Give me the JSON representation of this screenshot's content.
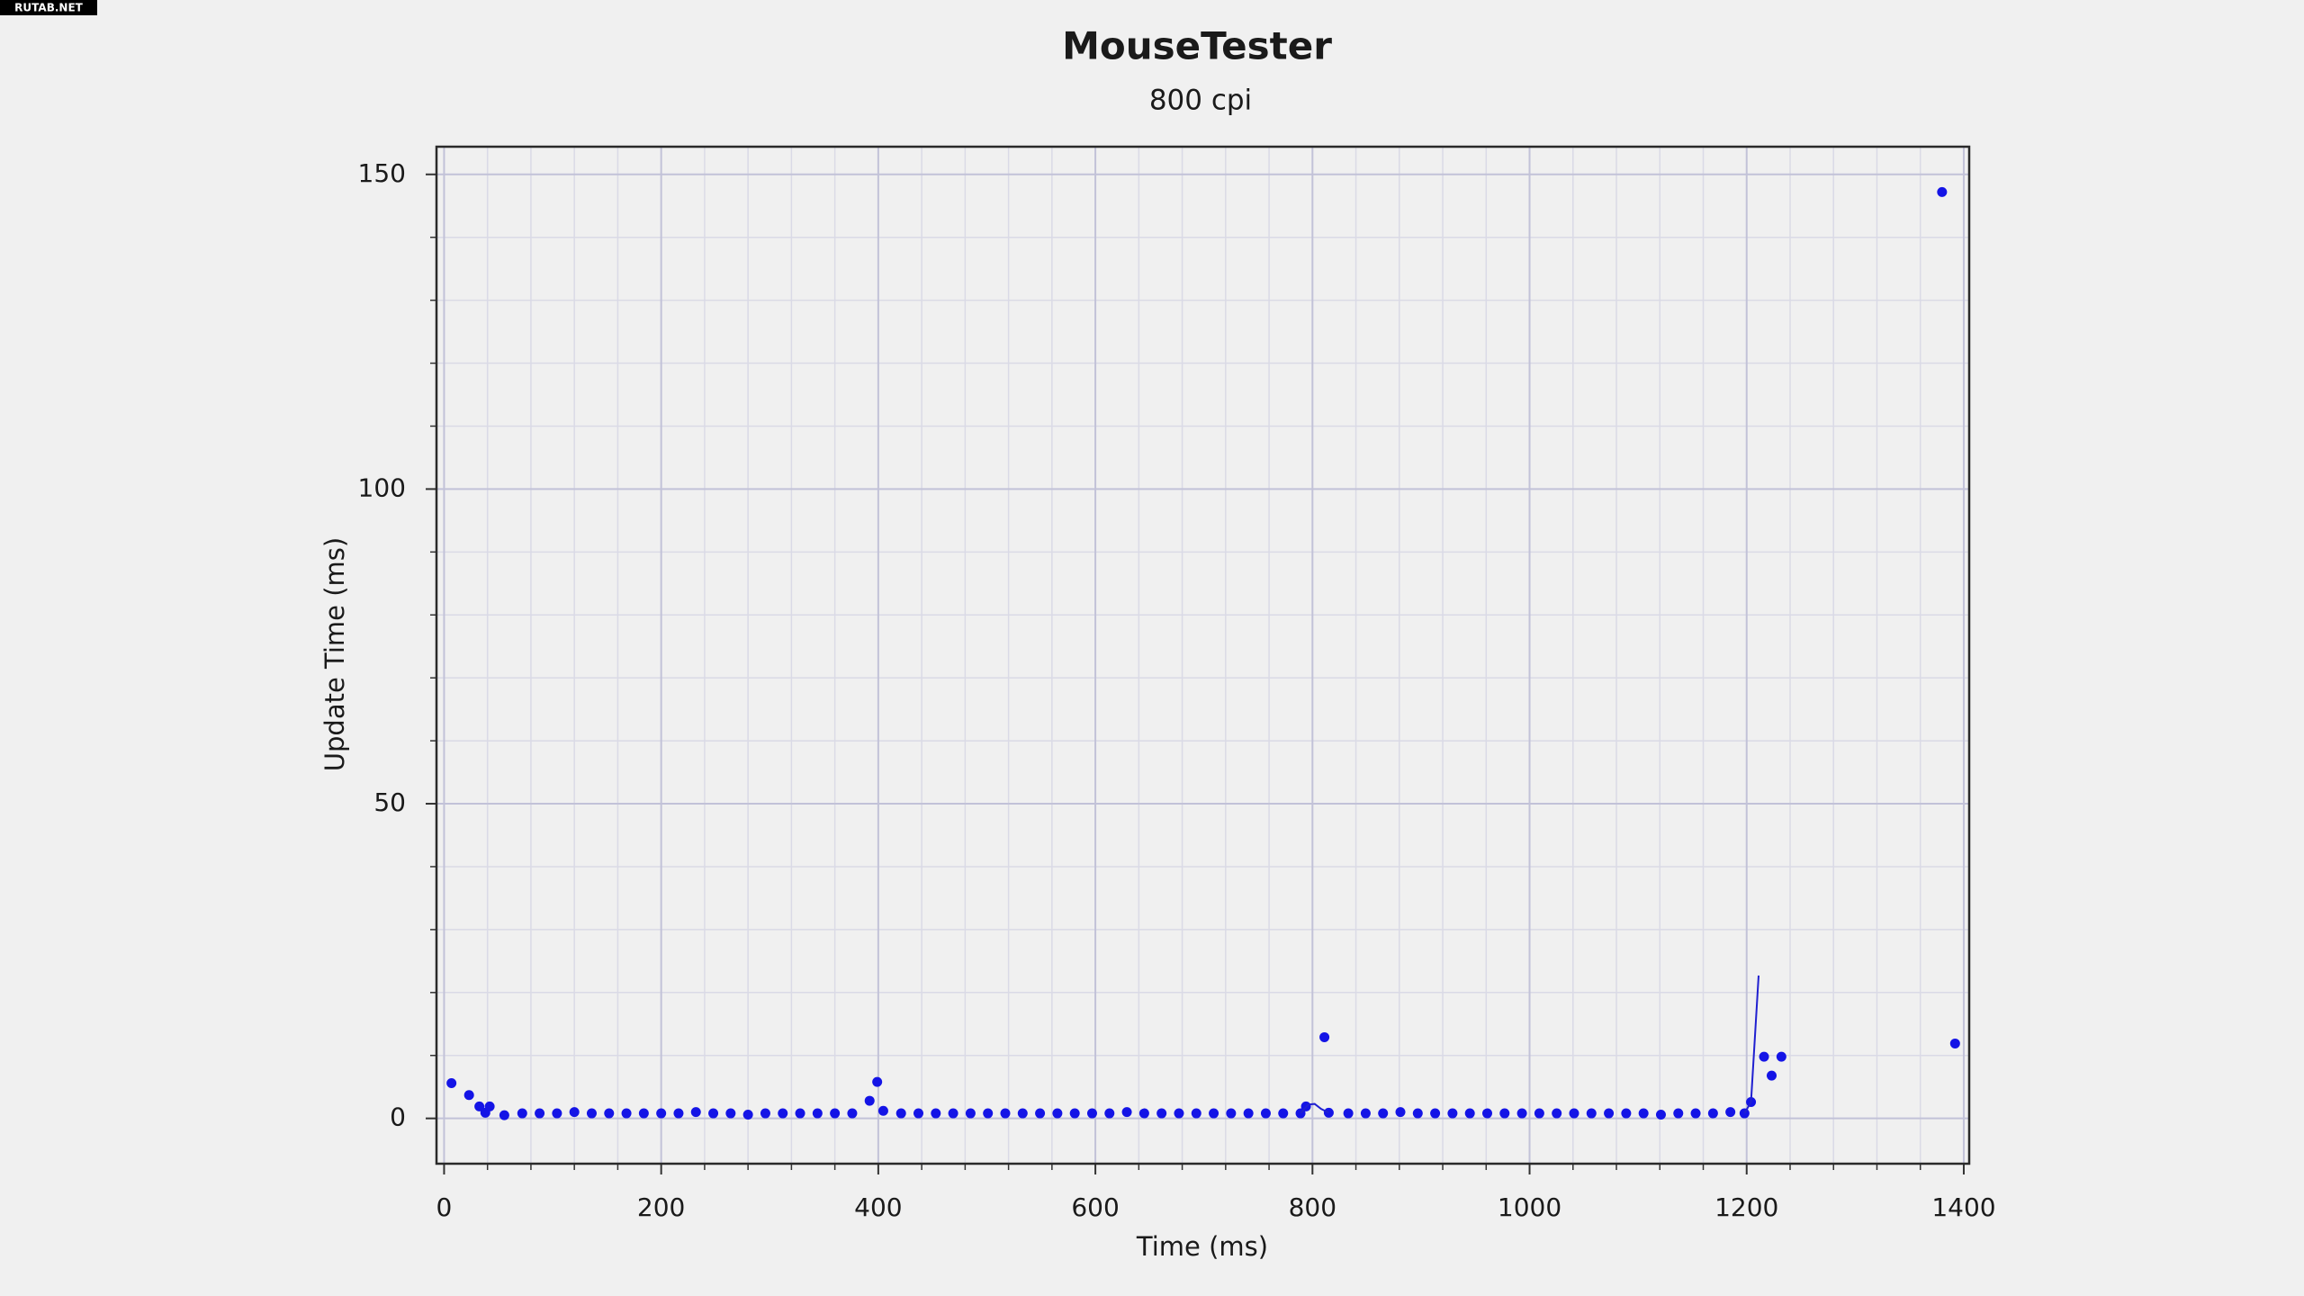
{
  "watermark": "RUTAB.NET",
  "chart_data": {
    "type": "scatter",
    "title": "MouseTester",
    "subtitle": "800 cpi",
    "x_label": "Time (ms)",
    "y_label": "Update Time (ms)",
    "xlim": [
      -7,
      1405
    ],
    "ylim": [
      -7.2,
      154.4
    ],
    "xticks": [
      0,
      200,
      400,
      600,
      800,
      1000,
      1200,
      1400
    ],
    "yticks": [
      0,
      50,
      100,
      150
    ],
    "x_minor_ticks": [
      40,
      80,
      120,
      160,
      240,
      280,
      320,
      360,
      440,
      480,
      520,
      560,
      640,
      680,
      720,
      760,
      840,
      880,
      920,
      960,
      1040,
      1080,
      1120,
      1160,
      1240,
      1280,
      1320,
      1360
    ],
    "y_minor_ticks": [
      10,
      20,
      30,
      40,
      60,
      70,
      80,
      90,
      110,
      120,
      130,
      140
    ],
    "grid": true,
    "series": [
      {
        "mode": "markers",
        "color": "#1414e6",
        "x": [
          6.8,
          23,
          32.5,
          38,
          42,
          55.5,
          72,
          88,
          104,
          120,
          136,
          152,
          168,
          184,
          200,
          216,
          232,
          248,
          264,
          280,
          296,
          312,
          328,
          344,
          360,
          376,
          392,
          399,
          404.6,
          421,
          437,
          453,
          469,
          485,
          501,
          517,
          533,
          549,
          565,
          581,
          597,
          613,
          629,
          645,
          661,
          677,
          693,
          709,
          725,
          741,
          757,
          773,
          789,
          794,
          811,
          815,
          833,
          849,
          865,
          881,
          897,
          913,
          929,
          945,
          961,
          977,
          993,
          1009,
          1025,
          1041,
          1057,
          1073,
          1089,
          1105,
          1121,
          1137,
          1153,
          1169,
          1185,
          1198,
          1204,
          1216,
          1223,
          1232,
          1380,
          1392
        ],
        "values": [
          5.6,
          3.7,
          1.9,
          0.9,
          1.9,
          0.5,
          0.8,
          0.8,
          0.8,
          1.0,
          0.8,
          0.8,
          0.8,
          0.8,
          0.8,
          0.8,
          1.0,
          0.8,
          0.8,
          0.6,
          0.8,
          0.8,
          0.8,
          0.8,
          0.8,
          0.8,
          2.8,
          5.8,
          1.2,
          0.8,
          0.8,
          0.8,
          0.8,
          0.8,
          0.8,
          0.8,
          0.8,
          0.8,
          0.8,
          0.8,
          0.8,
          0.8,
          1.0,
          0.8,
          0.8,
          0.8,
          0.8,
          0.8,
          0.8,
          0.8,
          0.8,
          0.8,
          0.8,
          1.9,
          12.9,
          0.9,
          0.8,
          0.8,
          0.8,
          1.0,
          0.8,
          0.8,
          0.8,
          0.8,
          0.8,
          0.8,
          0.8,
          0.8,
          0.8,
          0.8,
          0.8,
          0.8,
          0.8,
          0.8,
          0.6,
          0.8,
          0.8,
          0.8,
          1.0,
          0.8,
          2.6,
          9.8,
          6.8,
          9.8,
          147.2,
          11.9
        ]
      },
      {
        "mode": "line",
        "color": "#2020d0",
        "x": [
          789,
          796,
          802,
          808,
          815,
          null,
          1198,
          1204,
          1211
        ],
        "values": [
          0.8,
          2.2,
          2.3,
          1.5,
          0.9,
          null,
          0.8,
          2.6,
          22.7
        ]
      }
    ]
  }
}
